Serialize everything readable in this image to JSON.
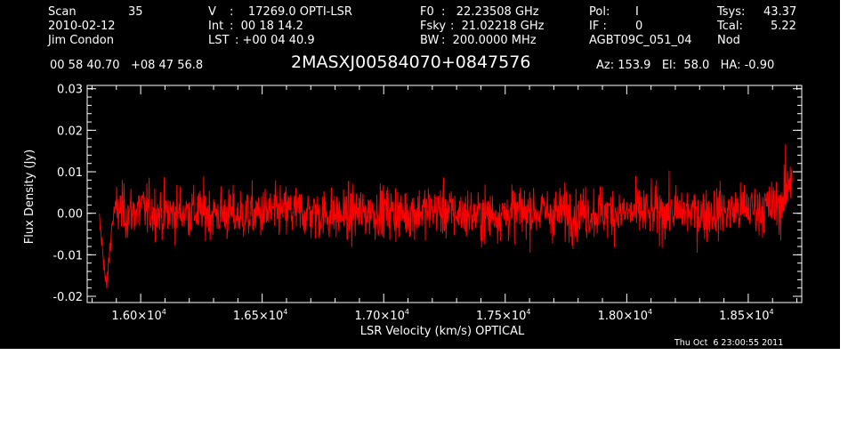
{
  "header": {
    "scan_label": "Scan",
    "scan_value": "35",
    "date": "2010-02-12",
    "observer": "Jim Condon",
    "v_label": "V",
    "v_value": ":    17269.0 OPTI-LSR",
    "int_label": "Int",
    "int_value": ":  00 18 14.2",
    "lst_label": "LST",
    "lst_value": ": +00 04 40.9",
    "f0_label": "F0",
    "f0_value": ":   22.23508 GHz",
    "fsky_label": "Fsky",
    "fsky_value": ":  21.02218 GHz",
    "bw_label": "BW",
    "bw_value": ":  200.0000 MHz",
    "pol_label": "Pol:",
    "pol_value": "I",
    "if_label": "IF :",
    "if_value": "0",
    "project": "AGBT09C_051_04",
    "tsys_label": "Tsys:",
    "tsys_value": "43.37",
    "tcal_label": "Tcal:",
    "tcal_value": "5.22",
    "mode": "Nod",
    "coords": "00 58 40.70   +08 47 56.8",
    "source": "2MASXJ00584070+0847576",
    "az_el_ha": "Az: 153.9   El:  58.0   HA: -0.90"
  },
  "timestamp": "Thu Oct  6 23:00:55 2011",
  "colors": {
    "background": "#000000",
    "axes": "#ffffff",
    "series": "#ff0000"
  },
  "chart_data": {
    "type": "line",
    "xlabel": "LSR Velocity (km/s) OPTICAL",
    "ylabel": "Flux Density (Jy)",
    "xlim": [
      15780,
      18720
    ],
    "ylim": [
      -0.0215,
      0.0308
    ],
    "xticks": [
      {
        "value": 16000,
        "mantissa": "1.60",
        "exp": "4"
      },
      {
        "value": 16500,
        "mantissa": "1.65",
        "exp": "4"
      },
      {
        "value": 17000,
        "mantissa": "1.70",
        "exp": "4"
      },
      {
        "value": 17500,
        "mantissa": "1.75",
        "exp": "4"
      },
      {
        "value": 18000,
        "mantissa": "1.80",
        "exp": "4"
      },
      {
        "value": 18500,
        "mantissa": "1.85",
        "exp": "4"
      }
    ],
    "yticks": [
      {
        "value": -0.02,
        "label": "-0.02"
      },
      {
        "value": -0.01,
        "label": "-0.01"
      },
      {
        "value": 0.0,
        "label": "0.00"
      },
      {
        "value": 0.01,
        "label": "0.01"
      },
      {
        "value": 0.02,
        "label": "0.02"
      },
      {
        "value": 0.03,
        "label": "0.03"
      }
    ],
    "grid": false,
    "series": [
      {
        "x": [
          15830,
          15850,
          15855,
          15860,
          15866,
          15872,
          15880,
          15890,
          15900,
          15920,
          15950,
          16000,
          16100,
          16200,
          16300,
          16400,
          16500,
          16600,
          16700,
          16800,
          16900,
          17000,
          17100,
          17200,
          17300,
          17400,
          17500,
          17600,
          17700,
          17800,
          17900,
          18000,
          18100,
          18200,
          18300,
          18400,
          18500,
          18550,
          18600,
          18630,
          18650,
          18660,
          18670,
          18680
        ],
        "y": [
          -0.002,
          -0.012,
          -0.017,
          -0.0175,
          -0.014,
          -0.009,
          -0.004,
          0.0,
          0.001,
          0.0005,
          0.0,
          0.001,
          0.0,
          0.0005,
          0.0,
          -0.0005,
          0.0,
          0.0005,
          0.0,
          -0.0005,
          0.0,
          0.0005,
          0.0,
          0.001,
          0.0,
          -0.0005,
          0.0,
          0.0005,
          0.0,
          0.0,
          0.0005,
          0.0,
          0.0,
          0.0005,
          0.0,
          0.0005,
          0.001,
          0.001,
          0.0015,
          0.002,
          0.004,
          0.006,
          0.008,
          0.011
        ],
        "noise_sigma": 0.0042
      }
    ]
  }
}
